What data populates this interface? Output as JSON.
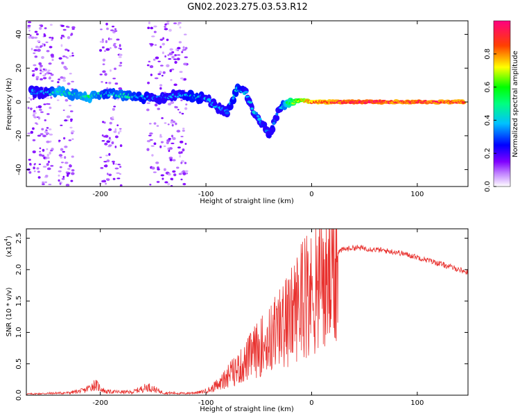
{
  "figure_title": "GN02.2023.275.03.53.R12",
  "chart_data": [
    {
      "type": "heatmap",
      "title": "GN02.2023.275.03.53.R12",
      "xlabel": "Height of straight line (km)",
      "ylabel": "Frequency (Hz)",
      "xlim": [
        -270,
        148
      ],
      "ylim": [
        -50,
        48
      ],
      "xticks": [
        -200,
        -100,
        0,
        100
      ],
      "yticks": [
        -40,
        -20,
        0,
        20,
        40
      ],
      "xtick_labels": [
        "-200",
        "-100",
        "0",
        "100"
      ],
      "ytick_labels": [
        "-40",
        "-20",
        "0",
        "20",
        "40"
      ],
      "colorbar": {
        "label": "Normalized spectral amplitude",
        "range": [
          0,
          1
        ],
        "ticks": [
          0,
          0.2,
          0.4,
          0.6,
          0.8
        ],
        "tick_labels": [
          "0.0",
          "0.2",
          "0.4",
          "0.6",
          "0.8"
        ],
        "colormap": [
          "#ffffff",
          "#8000ff",
          "#0000ff",
          "#00ffff",
          "#00ff00",
          "#ffff00",
          "#ff0000",
          "#ff0080"
        ]
      },
      "ridge": [
        {
          "x": -265,
          "y": 6,
          "a": 0.25
        },
        {
          "x": -250,
          "y": 5,
          "a": 0.3
        },
        {
          "x": -240,
          "y": 6,
          "a": 0.45
        },
        {
          "x": -225,
          "y": 4,
          "a": 0.4
        },
        {
          "x": -210,
          "y": 3,
          "a": 0.45
        },
        {
          "x": -195,
          "y": 5,
          "a": 0.35
        },
        {
          "x": -180,
          "y": 4,
          "a": 0.4
        },
        {
          "x": -165,
          "y": 3,
          "a": 0.35
        },
        {
          "x": -150,
          "y": 2,
          "a": 0.3
        },
        {
          "x": -125,
          "y": 4,
          "a": 0.3
        },
        {
          "x": -110,
          "y": 3,
          "a": 0.35
        },
        {
          "x": -100,
          "y": 2,
          "a": 0.3
        },
        {
          "x": -90,
          "y": -3,
          "a": 0.3
        },
        {
          "x": -80,
          "y": -6,
          "a": 0.3
        },
        {
          "x": -70,
          "y": 8,
          "a": 0.35
        },
        {
          "x": -62,
          "y": 5,
          "a": 0.3
        },
        {
          "x": -55,
          "y": -5,
          "a": 0.3
        },
        {
          "x": -45,
          "y": -14,
          "a": 0.25
        },
        {
          "x": -40,
          "y": -20,
          "a": 0.2
        },
        {
          "x": -30,
          "y": -3,
          "a": 0.3
        },
        {
          "x": -20,
          "y": 0,
          "a": 0.55
        },
        {
          "x": -10,
          "y": 1,
          "a": 0.7
        },
        {
          "x": 0,
          "y": 0,
          "a": 0.8
        },
        {
          "x": 20,
          "y": 0,
          "a": 0.85
        },
        {
          "x": 40,
          "y": 0,
          "a": 0.9
        },
        {
          "x": 60,
          "y": 0,
          "a": 0.9
        },
        {
          "x": 80,
          "y": 0,
          "a": 0.85
        },
        {
          "x": 100,
          "y": 0,
          "a": 0.88
        },
        {
          "x": 120,
          "y": 0,
          "a": 0.86
        },
        {
          "x": 145,
          "y": 0,
          "a": 0.85
        }
      ]
    },
    {
      "type": "line",
      "xlabel": "Height of straight line (km)",
      "ylabel": "SNR (10 * v/v)",
      "yscale_label": "(x10",
      "yscale_exponent": "4",
      "xlim": [
        -270,
        148
      ],
      "ylim": [
        0,
        2.65
      ],
      "xticks": [
        -200,
        -100,
        0,
        100
      ],
      "yticks": [
        0,
        0.5,
        1.0,
        1.5,
        2.0,
        2.5
      ],
      "xtick_labels": [
        "-200",
        "-100",
        "0",
        "100"
      ],
      "ytick_labels": [
        "0.0",
        "0.5",
        "1.0",
        "1.5",
        "2.0",
        "2.5"
      ],
      "color": "#e8312e",
      "envelope": {
        "x": [
          -270,
          -250,
          -230,
          -215,
          -205,
          -195,
          -170,
          -155,
          -140,
          -120,
          -105,
          -95,
          -85,
          -75,
          -65,
          -55,
          -48,
          -40,
          -35,
          -25,
          -20,
          -15,
          -10,
          -5,
          0,
          5,
          10,
          20,
          30,
          40,
          50,
          60,
          70,
          80,
          90,
          100,
          110,
          120,
          130,
          140,
          148
        ],
        "y": [
          0.02,
          0.03,
          0.04,
          0.08,
          0.18,
          0.06,
          0.05,
          0.14,
          0.04,
          0.03,
          0.05,
          0.1,
          0.25,
          0.45,
          0.6,
          0.85,
          0.95,
          1.1,
          1.2,
          1.4,
          1.55,
          1.75,
          1.85,
          1.95,
          2.0,
          2.05,
          2.15,
          2.25,
          2.32,
          2.35,
          2.34,
          2.32,
          2.3,
          2.28,
          2.24,
          2.2,
          2.15,
          2.1,
          2.05,
          2.0,
          1.95
        ]
      }
    }
  ]
}
